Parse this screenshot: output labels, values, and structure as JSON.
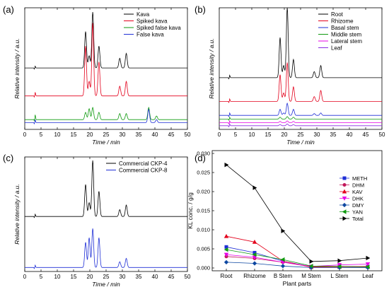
{
  "chart_data": [
    {
      "panel_label": "(a)",
      "type": "line",
      "title": "",
      "xlabel": "Time / min",
      "ylabel": "Relative intensity / a.u.",
      "xlim": [
        0,
        50
      ],
      "xticks": [
        0,
        5,
        10,
        15,
        20,
        25,
        30,
        35,
        40,
        45,
        50
      ],
      "ylim": [
        0,
        1
      ],
      "yticks_labeled": false,
      "legend": "top-right",
      "series": [
        {
          "name": "Kava",
          "color": "#000000",
          "baseline": 0.505,
          "peaks": [
            [
              3.2,
              0.015
            ],
            [
              18.7,
              0.3
            ],
            [
              19.8,
              0.1
            ],
            [
              20.9,
              0.46
            ],
            [
              22.8,
              0.18
            ],
            [
              29.2,
              0.08
            ],
            [
              31.2,
              0.12
            ]
          ]
        },
        {
          "name": "Spiked kava",
          "color": "#e3001b",
          "baseline": 0.275,
          "peaks": [
            [
              3.2,
              0.03
            ],
            [
              18.7,
              0.41
            ],
            [
              19.8,
              0.12
            ],
            [
              20.9,
              0.6
            ],
            [
              22.8,
              0.28
            ],
            [
              29.2,
              0.08
            ],
            [
              31.2,
              0.12
            ]
          ]
        },
        {
          "name": "Spiked false kava",
          "color": "#0f9a0f",
          "baseline": 0.08,
          "peaks": [
            [
              3.2,
              0.04
            ],
            [
              18.7,
              0.06
            ],
            [
              19.8,
              0.09
            ],
            [
              20.9,
              0.1
            ],
            [
              22.8,
              0.06
            ],
            [
              29.2,
              0.05
            ],
            [
              31.2,
              0.05
            ],
            [
              38.1,
              0.1
            ],
            [
              40.5,
              0.03
            ]
          ]
        },
        {
          "name": "False kava",
          "color": "#1f2fd6",
          "baseline": 0.055,
          "peaks": [
            [
              3.2,
              0.025
            ],
            [
              38.1,
              0.11
            ],
            [
              40.5,
              0.025
            ]
          ]
        }
      ]
    },
    {
      "panel_label": "(b)",
      "type": "line",
      "title": "",
      "xlabel": "Time / min",
      "ylabel": "Relative intensity / a.u.",
      "xlim": [
        0,
        50
      ],
      "xticks": [
        0,
        5,
        10,
        15,
        20,
        25,
        30,
        35,
        40,
        45,
        50
      ],
      "ylim": [
        0,
        1
      ],
      "yticks_labeled": false,
      "legend": "top-right",
      "series": [
        {
          "name": "Root",
          "color": "#000000",
          "baseline": 0.425,
          "peaks": [
            [
              3.2,
              0.02
            ],
            [
              18.7,
              0.33
            ],
            [
              19.8,
              0.1
            ],
            [
              20.9,
              0.58
            ],
            [
              22.8,
              0.15
            ],
            [
              29.2,
              0.05
            ],
            [
              31.2,
              0.1
            ]
          ]
        },
        {
          "name": "Rhizome",
          "color": "#e3001b",
          "baseline": 0.23,
          "peaks": [
            [
              3.2,
              0.02
            ],
            [
              18.7,
              0.22
            ],
            [
              19.8,
              0.07
            ],
            [
              20.9,
              0.32
            ],
            [
              22.8,
              0.12
            ],
            [
              29.2,
              0.04
            ],
            [
              31.2,
              0.09
            ]
          ]
        },
        {
          "name": "Basal stem",
          "color": "#1f2fd6",
          "baseline": 0.115,
          "peaks": [
            [
              3.2,
              0.02
            ],
            [
              18.7,
              0.05
            ],
            [
              19.8,
              0.02
            ],
            [
              20.9,
              0.1
            ],
            [
              22.8,
              0.05
            ],
            [
              29.2,
              0.015
            ],
            [
              31.2,
              0.02
            ]
          ]
        },
        {
          "name": "Middle stem",
          "color": "#0f9a0f",
          "baseline": 0.085,
          "peaks": [
            [
              3.2,
              0.015
            ],
            [
              18.7,
              0.015
            ],
            [
              20.9,
              0.02
            ],
            [
              22.8,
              0.015
            ]
          ]
        },
        {
          "name": "Lateral stem",
          "color": "#e600e6",
          "baseline": 0.055,
          "peaks": [
            [
              3.2,
              0.015
            ],
            [
              18.7,
              0.01
            ],
            [
              20.9,
              0.015
            ],
            [
              22.8,
              0.01
            ]
          ]
        },
        {
          "name": "Leaf",
          "color": "#8a2be2",
          "baseline": 0.03,
          "peaks": [
            [
              3.2,
              0.015
            ],
            [
              18.7,
              0.01
            ],
            [
              20.9,
              0.015
            ],
            [
              22.8,
              0.01
            ]
          ]
        }
      ]
    },
    {
      "panel_label": "(c)",
      "type": "line",
      "title": "",
      "xlabel": "Time / min",
      "ylabel": "Relative intensity / a.u.",
      "xlim": [
        0,
        50
      ],
      "xticks": [
        0,
        5,
        10,
        15,
        20,
        25,
        30,
        35,
        40,
        45,
        50
      ],
      "ylim": [
        0,
        1
      ],
      "yticks_labeled": false,
      "legend": "top-right",
      "series": [
        {
          "name": "Commercial CKP-4",
          "color": "#000000",
          "baseline": 0.48,
          "peaks": [
            [
              3.2,
              0.02
            ],
            [
              18.7,
              0.28
            ],
            [
              19.8,
              0.12
            ],
            [
              20.9,
              0.49
            ],
            [
              22.8,
              0.22
            ],
            [
              29.2,
              0.06
            ],
            [
              31.2,
              0.1
            ]
          ]
        },
        {
          "name": "Commercial CKP-8",
          "color": "#1f2fd6",
          "baseline": 0.035,
          "peaks": [
            [
              3.2,
              0.02
            ],
            [
              18.7,
              0.22
            ],
            [
              19.8,
              0.26
            ],
            [
              20.9,
              0.34
            ],
            [
              22.8,
              0.26
            ],
            [
              29.2,
              0.05
            ],
            [
              31.2,
              0.08
            ]
          ]
        }
      ]
    },
    {
      "panel_label": "(d)",
      "type": "line",
      "title": "",
      "xlabel": "Plant parts",
      "ylabel": "KL conc. / g/g",
      "categories": [
        "Root",
        "Rhizome",
        "B Stem",
        "M Stem",
        "L Stem",
        "Leaf"
      ],
      "ylim": [
        0,
        0.03
      ],
      "yticks": [
        "0.000",
        "0.005",
        "0.010",
        "0.015",
        "0.020",
        "0.025",
        "0.030"
      ],
      "legend": "right",
      "series": [
        {
          "name": "METH",
          "color": "#1f2fd6",
          "marker": "square",
          "values": [
            0.0055,
            0.004,
            0.0018,
            0.0003,
            0.0004,
            0.0003
          ]
        },
        {
          "name": "DHM",
          "color": "#c2185b",
          "marker": "circle",
          "values": [
            0.003,
            0.0025,
            0.0015,
            0.0003,
            0.0003,
            0.0002
          ]
        },
        {
          "name": "KAV",
          "color": "#e3001b",
          "marker": "triangle-up",
          "values": [
            0.0083,
            0.0068,
            0.0018,
            0.0002,
            0.0003,
            0.0004
          ]
        },
        {
          "name": "DHK",
          "color": "#e600e6",
          "marker": "triangle-down",
          "values": [
            0.0035,
            0.0028,
            0.0015,
            0.0004,
            0.0008,
            0.001
          ]
        },
        {
          "name": "DMY",
          "color": "#0d47a1",
          "marker": "diamond",
          "values": [
            0.0015,
            0.0012,
            0.0005,
            0.0001,
            0.0001,
            0.0001
          ]
        },
        {
          "name": "YAN",
          "color": "#0f9a0f",
          "marker": "triangle-left",
          "values": [
            0.0048,
            0.0035,
            0.0022,
            0.0005,
            0.0004,
            0.0003
          ]
        },
        {
          "name": "Total",
          "color": "#000000",
          "marker": "triangle-right",
          "values": [
            0.027,
            0.021,
            0.0097,
            0.0017,
            0.0019,
            0.0026
          ]
        }
      ]
    }
  ]
}
